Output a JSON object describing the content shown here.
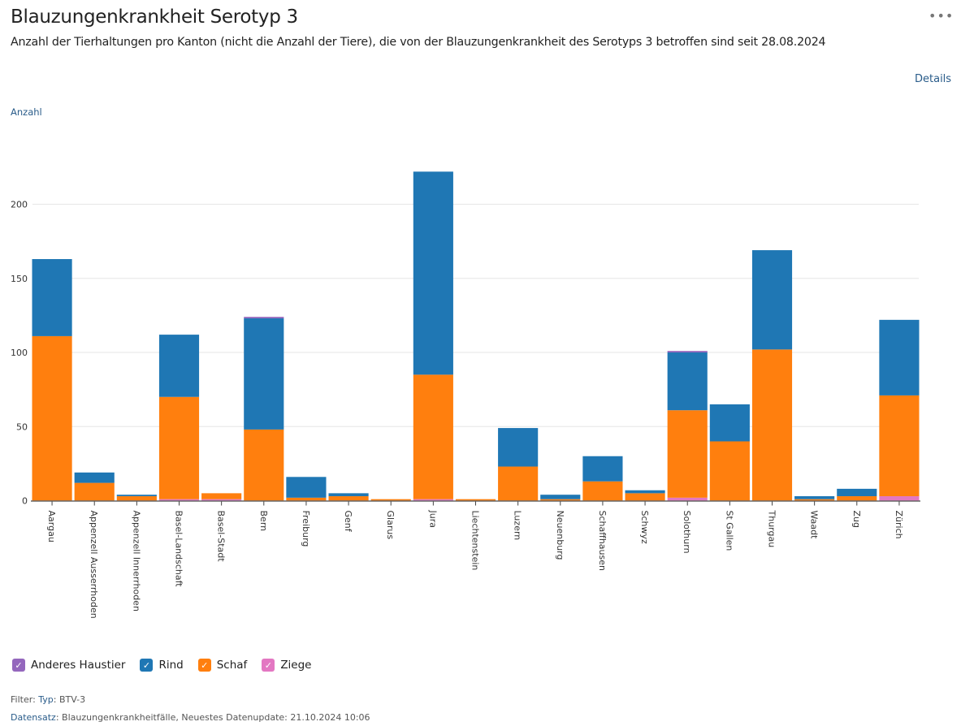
{
  "header": {
    "title": "Blauzungenkrankheit Serotyp 3",
    "subtitle": "Anzahl der Tierhaltungen pro Kanton (nicht die Anzahl der Tiere), die von der Blauzungenkrankheit des Serotyps 3 betroffen sind seit 28.08.2024",
    "more_icon": "•••",
    "details_label": "Details"
  },
  "footer": {
    "filter_label": "Filter",
    "filter_key": "Typ",
    "filter_value": "BTV-3",
    "dataset_label": "Datensatz",
    "dataset_value": "Blauzungenkrankheitfälle, Neuestes Datenupdate: 21.10.2024 10:06"
  },
  "chart_data": {
    "type": "bar",
    "stacked": true,
    "title": "Blauzungenkrankheit Serotyp 3",
    "xlabel": "",
    "ylabel": "Anzahl",
    "ylim": [
      0,
      225
    ],
    "yticks": [
      0,
      50,
      100,
      150,
      200
    ],
    "grid": true,
    "legend_position": "bottom-left",
    "categories": [
      "Aargau",
      "Appenzell Ausserrhoden",
      "Appenzell Innerrhoden",
      "Basel-Landschaft",
      "Basel-Stadt",
      "Bern",
      "Freiburg",
      "Genf",
      "Glarus",
      "Jura",
      "Liechtenstein",
      "Luzern",
      "Neuenburg",
      "Schaffhausen",
      "Schwyz",
      "Solothurn",
      "St Gallen",
      "Thurgau",
      "Waadt",
      "Zug",
      "Zürich"
    ],
    "series": [
      {
        "name": "Ziege",
        "color": "#e377c2",
        "values": [
          0,
          0,
          0,
          1,
          1,
          0,
          0,
          0,
          0,
          1,
          0,
          0,
          0,
          0,
          0,
          2,
          0,
          0,
          0,
          0,
          3
        ]
      },
      {
        "name": "Schaf",
        "color": "#ff7f0e",
        "values": [
          111,
          12,
          3,
          69,
          4,
          48,
          2,
          3,
          1,
          84,
          1,
          23,
          1,
          13,
          5,
          59,
          40,
          102,
          1,
          3,
          68
        ]
      },
      {
        "name": "Rind",
        "color": "#1f77b4",
        "values": [
          52,
          7,
          1,
          42,
          0,
          75,
          14,
          2,
          0,
          137,
          0,
          26,
          3,
          17,
          2,
          39,
          25,
          67,
          2,
          5,
          51
        ]
      },
      {
        "name": "Anderes Haustier",
        "color": "#9467bd",
        "values": [
          0,
          0,
          0,
          0,
          0,
          1,
          0,
          0,
          0,
          0,
          0,
          0,
          0,
          0,
          0,
          1,
          0,
          0,
          0,
          0,
          0
        ]
      }
    ],
    "legend": [
      {
        "name": "Anderes Haustier",
        "color": "#9467bd"
      },
      {
        "name": "Rind",
        "color": "#1f77b4"
      },
      {
        "name": "Schaf",
        "color": "#ff7f0e"
      },
      {
        "name": "Ziege",
        "color": "#e377c2"
      }
    ]
  }
}
